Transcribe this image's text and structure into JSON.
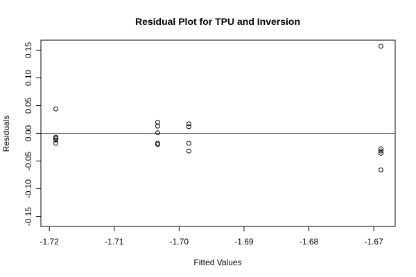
{
  "chart_data": {
    "type": "scatter",
    "title": "Residual Plot for TPU and Inversion",
    "xlabel": "Fitted Values",
    "ylabel": "Residuals",
    "xlim": [
      -1.7213,
      -1.6667
    ],
    "ylim": [
      -0.168,
      0.168
    ],
    "x_ticks": [
      -1.72,
      -1.71,
      -1.7,
      -1.69,
      -1.68,
      -1.67
    ],
    "x_tick_labels": [
      "-1.72",
      "-1.71",
      "-1.70",
      "-1.69",
      "-1.68",
      "-1.67"
    ],
    "y_ticks": [
      -0.15,
      -0.1,
      -0.05,
      0.0,
      0.05,
      0.1,
      0.15
    ],
    "y_tick_labels": [
      "-0.15",
      "-0.10",
      "-0.05",
      "0.00",
      "0.05",
      "0.10",
      "0.15"
    ],
    "reference_line": {
      "y": 0,
      "color": "#ff0000"
    },
    "point_color": "#000000",
    "grid": false,
    "points": [
      {
        "x": -1.719,
        "y": 0.044
      },
      {
        "x": -1.719,
        "y": -0.007
      },
      {
        "x": -1.719,
        "y": -0.009
      },
      {
        "x": -1.719,
        "y": -0.012
      },
      {
        "x": -1.719,
        "y": -0.018
      },
      {
        "x": -1.7033,
        "y": 0.02
      },
      {
        "x": -1.7033,
        "y": 0.013
      },
      {
        "x": -1.7033,
        "y": 0.001
      },
      {
        "x": -1.7033,
        "y": -0.018
      },
      {
        "x": -1.7033,
        "y": -0.02
      },
      {
        "x": -1.6985,
        "y": 0.017
      },
      {
        "x": -1.6985,
        "y": 0.012
      },
      {
        "x": -1.6985,
        "y": -0.018
      },
      {
        "x": -1.6985,
        "y": -0.032
      },
      {
        "x": -1.6689,
        "y": 0.157
      },
      {
        "x": -1.6689,
        "y": -0.028
      },
      {
        "x": -1.6689,
        "y": -0.032
      },
      {
        "x": -1.6689,
        "y": -0.036
      },
      {
        "x": -1.6689,
        "y": -0.066
      }
    ]
  }
}
